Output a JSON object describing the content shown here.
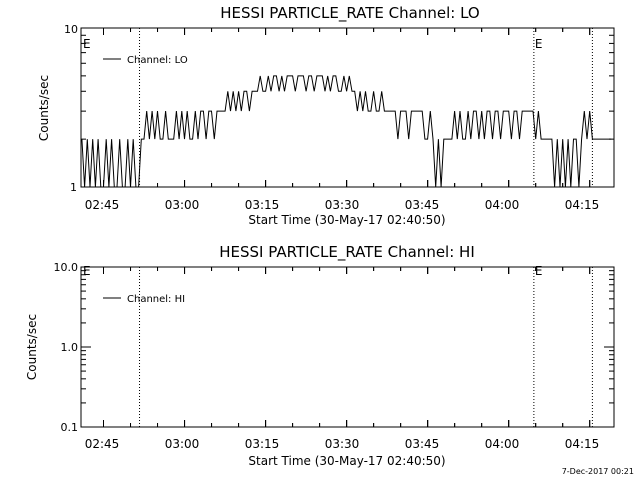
{
  "colors": {
    "background": "#ffffff",
    "foreground": "#000000"
  },
  "footer_date": "7-Dec-2017 00:21",
  "chart_data": [
    {
      "type": "line",
      "title": "HESSI PARTICLE_RATE Channel: LO",
      "xlabel": "Start Time (30-May-17 02:40:50)",
      "ylabel": "Counts/sec",
      "yscale": "log",
      "ylim": [
        1,
        10
      ],
      "y_ticks": [
        1,
        10
      ],
      "y_tick_labels": [
        "1",
        "10"
      ],
      "xlim": [
        "02:40:50",
        "04:19:30"
      ],
      "x_ticks": [
        "02:45",
        "03:00",
        "03:15",
        "03:30",
        "03:45",
        "04:00",
        "04:15"
      ],
      "legend": {
        "entries": [
          "Channel: LO"
        ],
        "placement": "top-left"
      },
      "markers": [
        {
          "time": "02:51:40",
          "label": ""
        },
        {
          "time": "04:04:40",
          "label": "E"
        },
        {
          "time": "04:15:30",
          "label": ""
        }
      ],
      "left_marker_label": "E",
      "series": [
        {
          "name": "Channel: LO",
          "time": [
            "02:41:00",
            "02:41:30",
            "02:42:00",
            "02:42:30",
            "02:43:00",
            "02:43:30",
            "02:44:00",
            "02:44:30",
            "02:45:00",
            "02:45:30",
            "02:46:00",
            "02:46:30",
            "02:47:00",
            "02:47:30",
            "02:48:00",
            "02:48:30",
            "02:49:00",
            "02:49:30",
            "02:50:00",
            "02:50:30",
            "02:51:00",
            "02:51:30",
            "02:52:00",
            "02:52:30",
            "02:53:00",
            "02:53:30",
            "02:54:00",
            "02:54:30",
            "02:55:00",
            "02:55:30",
            "02:56:00",
            "02:56:30",
            "02:57:00",
            "02:57:30",
            "02:58:00",
            "02:58:30",
            "02:59:00",
            "02:59:30",
            "03:00:00",
            "03:00:30",
            "03:01:00",
            "03:01:30",
            "03:02:00",
            "03:02:30",
            "03:03:00",
            "03:03:30",
            "03:04:00",
            "03:04:30",
            "03:05:00",
            "03:05:30",
            "03:06:00",
            "03:06:30",
            "03:07:00",
            "03:07:30",
            "03:08:00",
            "03:08:30",
            "03:09:00",
            "03:09:30",
            "03:10:00",
            "03:10:30",
            "03:11:00",
            "03:11:30",
            "03:12:00",
            "03:12:30",
            "03:13:00",
            "03:13:30",
            "03:14:00",
            "03:14:30",
            "03:15:00",
            "03:15:30",
            "03:16:00",
            "03:16:30",
            "03:17:00",
            "03:17:30",
            "03:18:00",
            "03:18:30",
            "03:19:00",
            "03:19:30",
            "03:20:00",
            "03:20:30",
            "03:21:00",
            "03:21:30",
            "03:22:00",
            "03:22:30",
            "03:23:00",
            "03:23:30",
            "03:24:00",
            "03:24:30",
            "03:25:00",
            "03:25:30",
            "03:26:00",
            "03:26:30",
            "03:27:00",
            "03:27:30",
            "03:28:00",
            "03:28:30",
            "03:29:00",
            "03:29:30",
            "03:30:00",
            "03:30:30",
            "03:31:00",
            "03:31:30",
            "03:32:00",
            "03:32:30",
            "03:33:00",
            "03:33:30",
            "03:34:00",
            "03:34:30",
            "03:35:00",
            "03:35:30",
            "03:36:00",
            "03:36:30",
            "03:37:00",
            "03:37:30",
            "03:38:00",
            "03:38:30",
            "03:39:00",
            "03:39:30",
            "03:40:00",
            "03:40:30",
            "03:41:00",
            "03:41:30",
            "03:42:00",
            "03:42:30",
            "03:43:00",
            "03:43:30",
            "03:44:00",
            "03:44:30",
            "03:45:00",
            "03:45:30",
            "03:46:00",
            "03:46:30",
            "03:47:00",
            "03:47:30",
            "03:48:00",
            "03:48:30",
            "03:49:00",
            "03:49:30",
            "03:50:00",
            "03:50:30",
            "03:51:00",
            "03:51:30",
            "03:52:00",
            "03:52:30",
            "03:53:00",
            "03:53:30",
            "03:54:00",
            "03:54:30",
            "03:55:00",
            "03:55:30",
            "03:56:00",
            "03:56:30",
            "03:57:00",
            "03:57:30",
            "03:58:00",
            "03:58:30",
            "03:59:00",
            "03:59:30",
            "04:00:00",
            "04:00:30",
            "04:01:00",
            "04:01:30",
            "04:02:00",
            "04:02:30",
            "04:03:00",
            "04:03:30",
            "04:04:00",
            "04:04:30",
            "04:05:00",
            "04:05:30",
            "04:06:00",
            "04:06:30",
            "04:07:00",
            "04:07:30",
            "04:08:00",
            "04:08:30",
            "04:09:00",
            "04:09:30",
            "04:10:00",
            "04:10:30",
            "04:11:00",
            "04:11:30",
            "04:12:00",
            "04:12:30",
            "04:13:00",
            "04:13:30",
            "04:14:00",
            "04:14:30",
            "04:15:00",
            "04:15:30",
            "04:16:00",
            "04:16:30",
            "04:17:00",
            "04:17:30",
            "04:18:00",
            "04:18:30",
            "04:19:00"
          ],
          "counts": [
            2,
            1,
            2,
            1,
            2,
            1,
            2,
            1,
            1,
            2,
            1,
            2,
            1,
            1,
            2,
            1,
            1,
            2,
            1,
            2,
            1,
            1,
            2,
            2,
            3,
            2,
            3,
            2,
            3,
            2,
            2,
            3,
            2,
            2,
            2,
            3,
            2,
            3,
            2,
            3,
            2,
            2,
            3,
            2,
            3,
            3,
            2,
            3,
            3,
            2,
            3,
            3,
            3,
            3,
            4,
            3,
            4,
            3,
            4,
            3,
            4,
            4,
            3,
            4,
            4,
            4,
            5,
            4,
            4,
            5,
            4,
            5,
            5,
            4,
            5,
            4,
            5,
            5,
            5,
            4,
            5,
            5,
            5,
            4,
            5,
            5,
            4,
            5,
            5,
            5,
            4,
            5,
            4,
            5,
            5,
            4,
            4,
            5,
            4,
            5,
            4,
            4,
            3,
            4,
            3,
            4,
            3,
            3,
            4,
            3,
            3,
            4,
            3,
            3,
            3,
            3,
            3,
            2,
            3,
            3,
            3,
            2,
            3,
            3,
            3,
            3,
            3,
            2,
            2,
            3,
            2,
            1,
            2,
            1,
            2,
            2,
            2,
            2,
            3,
            2,
            3,
            2,
            2,
            3,
            2,
            3,
            3,
            2,
            3,
            2,
            3,
            3,
            2,
            3,
            3,
            2,
            3,
            3,
            3,
            2,
            3,
            3,
            2,
            3,
            3,
            3,
            3,
            3,
            2,
            3,
            2,
            2,
            2,
            2,
            2,
            1,
            2,
            1,
            2,
            1,
            2,
            1,
            2,
            2,
            1,
            2,
            3,
            2,
            3,
            2,
            2,
            2,
            2,
            2,
            2,
            2,
            2
          ]
        }
      ]
    },
    {
      "type": "line",
      "title": "HESSI PARTICLE_RATE Channel: HI",
      "xlabel": "Start Time (30-May-17 02:40:50)",
      "ylabel": "Counts/sec",
      "yscale": "log",
      "ylim": [
        0.1,
        10
      ],
      "y_ticks": [
        0.1,
        1,
        10
      ],
      "y_tick_labels": [
        "0.1",
        "1.0",
        "10.0"
      ],
      "xlim": [
        "02:40:50",
        "04:19:30"
      ],
      "x_ticks": [
        "02:45",
        "03:00",
        "03:15",
        "03:30",
        "03:45",
        "04:00",
        "04:15"
      ],
      "legend": {
        "entries": [
          "Channel: HI"
        ],
        "placement": "top-left"
      },
      "markers": [
        {
          "time": "02:51:40",
          "label": ""
        },
        {
          "time": "04:04:40",
          "label": "E"
        },
        {
          "time": "04:15:30",
          "label": ""
        }
      ],
      "left_marker_label": "E",
      "series": [
        {
          "name": "Channel: HI",
          "time": [],
          "counts": []
        }
      ]
    }
  ]
}
